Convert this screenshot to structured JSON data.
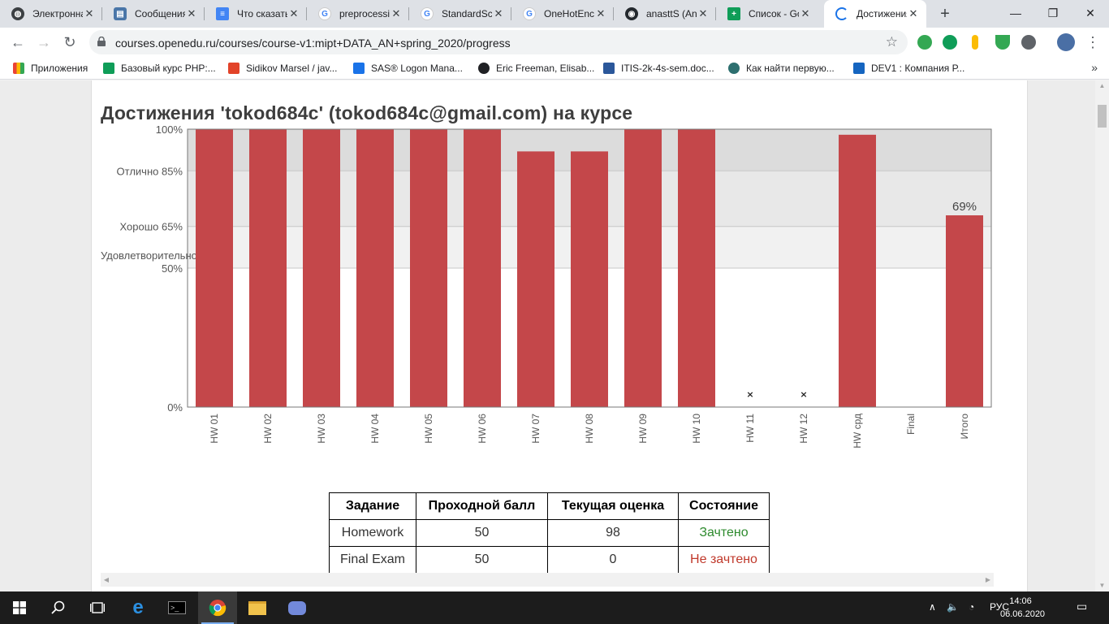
{
  "browser": {
    "tabs": [
      {
        "title": "Электронна",
        "color": "#3c4043",
        "glyph": "◍"
      },
      {
        "title": "Сообщения",
        "color": "#4a76a8",
        "glyph": "▤"
      },
      {
        "title": "Что сказать",
        "color": "#4285f4",
        "glyph": "≡"
      },
      {
        "title": "preprocessi",
        "color": "#ffffff",
        "glyph": "G"
      },
      {
        "title": "StandardSca",
        "color": "#ffffff",
        "glyph": "G"
      },
      {
        "title": "OneHotEnc",
        "color": "#ffffff",
        "glyph": "G"
      },
      {
        "title": "anasttS (An",
        "color": "#24292e",
        "glyph": "◉"
      },
      {
        "title": "Список - Go",
        "color": "#0f9d58",
        "glyph": "+"
      },
      {
        "title": "Достижения",
        "color": "#ffffff",
        "glyph": "◌"
      }
    ],
    "url": "courses.openedu.ru/courses/course-v1:mipt+DATA_AN+spring_2020/progress",
    "bookmarks": [
      {
        "label": "Приложения",
        "color": "#ea4335"
      },
      {
        "label": "Базовый курс PHP:...",
        "color": "#0f9d58"
      },
      {
        "label": "Sidikov Marsel / jav...",
        "color": "#e24329"
      },
      {
        "label": "SAS® Logon Mana...",
        "color": "#1a73e8"
      },
      {
        "label": "Eric Freeman, Elisab...",
        "color": "#202124"
      },
      {
        "label": "ITIS-2k-4s-sem.doc...",
        "color": "#2b579a"
      },
      {
        "label": "Как найти первую...",
        "color": "#2d6f6f"
      },
      {
        "label": "DEV1 : Компания Р...",
        "color": "#1565c0"
      }
    ]
  },
  "page": {
    "title": "Достижения 'tokod684c' (tokod684c@gmail.com) на курсе"
  },
  "chart_data": {
    "type": "bar",
    "categories": [
      "HW 01",
      "HW 02",
      "HW 03",
      "HW 04",
      "HW 05",
      "HW 06",
      "HW 07",
      "HW 08",
      "HW 09",
      "HW 10",
      "HW 11",
      "HW 12",
      "HW срд",
      "Final",
      "Итого"
    ],
    "values": [
      100,
      100,
      100,
      100,
      100,
      100,
      92,
      92,
      100,
      100,
      0,
      0,
      98,
      null,
      69
    ],
    "dropped_markers": [
      "HW 11",
      "HW 12"
    ],
    "ylim": [
      0,
      100
    ],
    "yticks": [
      {
        "value": 100,
        "label": "100%"
      },
      {
        "value": 85,
        "label": "Отлично 85%"
      },
      {
        "value": 65,
        "label": "Хорошо 65%"
      },
      {
        "value": 50,
        "label": "50%",
        "band_label": "Удовлетворительно"
      },
      {
        "value": 0,
        "label": "0%"
      }
    ],
    "bands": [
      {
        "from": 85,
        "to": 100,
        "color": "#dcdcdc"
      },
      {
        "from": 65,
        "to": 85,
        "color": "#e8e8e8"
      },
      {
        "from": 50,
        "to": 65,
        "color": "#f1f1f1"
      }
    ],
    "annotations": [
      {
        "category": "Итого",
        "label": "69%"
      }
    ],
    "bar_color": "#c4474a",
    "title": "",
    "xlabel": "",
    "ylabel": ""
  },
  "grades_table": {
    "headers": [
      "Задание",
      "Проходной балл",
      "Текущая оценка",
      "Состояние"
    ],
    "rows": [
      [
        "Homework",
        "50",
        "98",
        "Зачтено"
      ],
      [
        "Final Exam",
        "50",
        "0",
        "Не зачтено"
      ]
    ],
    "status_colors": {
      "pass": "#2e8b2e",
      "fail": "#c0392b"
    }
  },
  "taskbar": {
    "language": "РУС",
    "time": "14:06",
    "date": "06.06.2020"
  }
}
